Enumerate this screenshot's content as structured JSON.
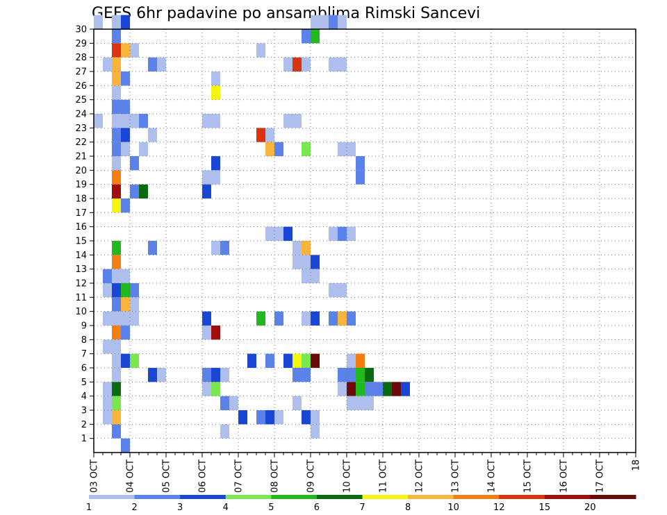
{
  "chart_data": {
    "type": "heatmap",
    "title": "GEFS 6hr padavine po ansamblima Rimski Sancevi",
    "xlabel": "",
    "ylabel": "",
    "x_tick_labels": [
      "03 OCT",
      "04 OCT",
      "05 OCT",
      "06 OCT",
      "07 OCT",
      "08 OCT",
      "09 OCT",
      "10 OCT",
      "11 OCT",
      "12 OCT",
      "13 OCT",
      "14 OCT",
      "15 OCT",
      "16 OCT",
      "17 OCT",
      "18"
    ],
    "y_tick_labels": [
      "1",
      "2",
      "3",
      "4",
      "5",
      "6",
      "7",
      "8",
      "9",
      "10",
      "11",
      "12",
      "13",
      "14",
      "15",
      "16",
      "17",
      "18",
      "19",
      "20",
      "21",
      "22",
      "23",
      "24",
      "25",
      "26",
      "27",
      "28",
      "29",
      "30"
    ],
    "xlim": [
      0,
      60
    ],
    "ylim": [
      0,
      30
    ],
    "grid": true,
    "x_unit": "6-hour step from 03 OCT 00Z",
    "y_unit": "ensemble member",
    "colorbar": {
      "labels": [
        "1",
        "2",
        "3",
        "4",
        "5",
        "6",
        "7",
        "8",
        "10",
        "12",
        "15",
        "20"
      ],
      "colors": [
        "#aebfee",
        "#5b82e8",
        "#1947d4",
        "#7ae650",
        "#22b91f",
        "#096a0f",
        "#f5f50f",
        "#f8b43b",
        "#f47d11",
        "#db320f",
        "#a10d0d",
        "#6a0a0a"
      ]
    },
    "cells": [
      [
        0,
        30,
        0
      ],
      [
        2,
        30,
        0
      ],
      [
        3,
        30,
        2
      ],
      [
        24,
        30,
        0
      ],
      [
        25,
        30,
        0
      ],
      [
        26,
        30,
        1
      ],
      [
        27,
        30,
        0
      ],
      [
        2,
        29,
        1
      ],
      [
        23,
        29,
        1
      ],
      [
        24,
        29,
        4
      ],
      [
        2,
        28,
        9
      ],
      [
        3,
        28,
        7
      ],
      [
        4,
        28,
        0
      ],
      [
        18,
        28,
        0
      ],
      [
        1,
        27,
        0
      ],
      [
        2,
        27,
        7
      ],
      [
        6,
        27,
        1
      ],
      [
        7,
        27,
        0
      ],
      [
        21,
        27,
        0
      ],
      [
        22,
        27,
        9
      ],
      [
        23,
        27,
        0
      ],
      [
        26,
        27,
        0
      ],
      [
        27,
        27,
        0
      ],
      [
        2,
        26,
        7
      ],
      [
        3,
        26,
        1
      ],
      [
        13,
        26,
        0
      ],
      [
        2,
        25,
        0
      ],
      [
        13,
        25,
        6
      ],
      [
        2,
        24,
        1
      ],
      [
        3,
        24,
        1
      ],
      [
        0,
        23,
        0
      ],
      [
        2,
        23,
        0
      ],
      [
        3,
        23,
        0
      ],
      [
        4,
        23,
        0
      ],
      [
        5,
        23,
        1
      ],
      [
        12,
        23,
        0
      ],
      [
        13,
        23,
        0
      ],
      [
        21,
        23,
        0
      ],
      [
        22,
        23,
        0
      ],
      [
        2,
        22,
        1
      ],
      [
        3,
        22,
        2
      ],
      [
        6,
        22,
        0
      ],
      [
        18,
        22,
        9
      ],
      [
        19,
        22,
        0
      ],
      [
        2,
        21,
        1
      ],
      [
        3,
        21,
        0
      ],
      [
        5,
        21,
        0
      ],
      [
        19,
        21,
        7
      ],
      [
        20,
        21,
        1
      ],
      [
        23,
        21,
        3
      ],
      [
        27,
        21,
        0
      ],
      [
        28,
        21,
        0
      ],
      [
        2,
        20,
        0
      ],
      [
        4,
        20,
        1
      ],
      [
        13,
        20,
        2
      ],
      [
        29,
        20,
        1
      ],
      [
        2,
        19,
        8
      ],
      [
        12,
        19,
        0
      ],
      [
        13,
        19,
        0
      ],
      [
        29,
        19,
        1
      ],
      [
        2,
        18,
        10
      ],
      [
        4,
        18,
        1
      ],
      [
        5,
        18,
        5
      ],
      [
        12,
        18,
        2
      ],
      [
        2,
        17,
        6
      ],
      [
        3,
        17,
        1
      ],
      [
        19,
        15,
        0
      ],
      [
        20,
        15,
        0
      ],
      [
        21,
        15,
        2
      ],
      [
        26,
        15,
        0
      ],
      [
        27,
        15,
        1
      ],
      [
        28,
        15,
        0
      ],
      [
        2,
        14,
        4
      ],
      [
        6,
        14,
        1
      ],
      [
        13,
        14,
        0
      ],
      [
        14,
        14,
        1
      ],
      [
        22,
        14,
        0
      ],
      [
        23,
        14,
        7
      ],
      [
        2,
        13,
        8
      ],
      [
        22,
        13,
        0
      ],
      [
        23,
        13,
        0
      ],
      [
        24,
        13,
        2
      ],
      [
        1,
        12,
        1
      ],
      [
        2,
        12,
        0
      ],
      [
        3,
        12,
        0
      ],
      [
        23,
        12,
        0
      ],
      [
        24,
        12,
        0
      ],
      [
        1,
        11,
        0
      ],
      [
        2,
        11,
        2
      ],
      [
        3,
        11,
        4
      ],
      [
        4,
        11,
        1
      ],
      [
        26,
        11,
        0
      ],
      [
        27,
        11,
        0
      ],
      [
        2,
        10,
        1
      ],
      [
        3,
        10,
        7
      ],
      [
        4,
        10,
        0
      ],
      [
        1,
        9,
        0
      ],
      [
        2,
        9,
        0
      ],
      [
        3,
        9,
        0
      ],
      [
        4,
        9,
        0
      ],
      [
        12,
        9,
        2
      ],
      [
        18,
        9,
        4
      ],
      [
        20,
        9,
        1
      ],
      [
        23,
        9,
        0
      ],
      [
        24,
        9,
        2
      ],
      [
        26,
        9,
        1
      ],
      [
        27,
        9,
        7
      ],
      [
        28,
        9,
        1
      ],
      [
        2,
        8,
        8
      ],
      [
        3,
        8,
        1
      ],
      [
        12,
        8,
        0
      ],
      [
        13,
        8,
        10
      ],
      [
        1,
        7,
        0
      ],
      [
        2,
        7,
        0
      ],
      [
        2,
        6,
        0
      ],
      [
        3,
        6,
        2
      ],
      [
        4,
        6,
        3
      ],
      [
        17,
        6,
        2
      ],
      [
        19,
        6,
        1
      ],
      [
        21,
        6,
        2
      ],
      [
        22,
        6,
        6
      ],
      [
        23,
        6,
        3
      ],
      [
        24,
        6,
        11
      ],
      [
        28,
        6,
        0
      ],
      [
        29,
        6,
        8
      ],
      [
        2,
        5,
        0
      ],
      [
        6,
        5,
        2
      ],
      [
        7,
        5,
        0
      ],
      [
        12,
        5,
        1
      ],
      [
        13,
        5,
        2
      ],
      [
        14,
        5,
        0
      ],
      [
        22,
        5,
        1
      ],
      [
        23,
        5,
        1
      ],
      [
        27,
        5,
        1
      ],
      [
        28,
        5,
        1
      ],
      [
        29,
        5,
        4
      ],
      [
        30,
        5,
        5
      ],
      [
        1,
        4,
        0
      ],
      [
        2,
        4,
        5
      ],
      [
        12,
        4,
        0
      ],
      [
        13,
        4,
        3
      ],
      [
        27,
        4,
        0
      ],
      [
        28,
        4,
        11
      ],
      [
        29,
        4,
        4
      ],
      [
        30,
        4,
        1
      ],
      [
        31,
        4,
        1
      ],
      [
        32,
        4,
        5
      ],
      [
        33,
        4,
        11
      ],
      [
        34,
        4,
        2
      ],
      [
        1,
        3,
        0
      ],
      [
        2,
        3,
        3
      ],
      [
        14,
        3,
        1
      ],
      [
        15,
        3,
        0
      ],
      [
        22,
        3,
        0
      ],
      [
        28,
        3,
        0
      ],
      [
        29,
        3,
        0
      ],
      [
        30,
        3,
        0
      ],
      [
        1,
        2,
        0
      ],
      [
        2,
        2,
        7
      ],
      [
        16,
        2,
        2
      ],
      [
        18,
        2,
        1
      ],
      [
        19,
        2,
        2
      ],
      [
        20,
        2,
        0
      ],
      [
        23,
        2,
        2
      ],
      [
        24,
        2,
        0
      ],
      [
        2,
        1,
        1
      ],
      [
        14,
        1,
        0
      ],
      [
        24,
        1,
        0
      ],
      [
        3,
        0,
        1
      ]
    ]
  }
}
